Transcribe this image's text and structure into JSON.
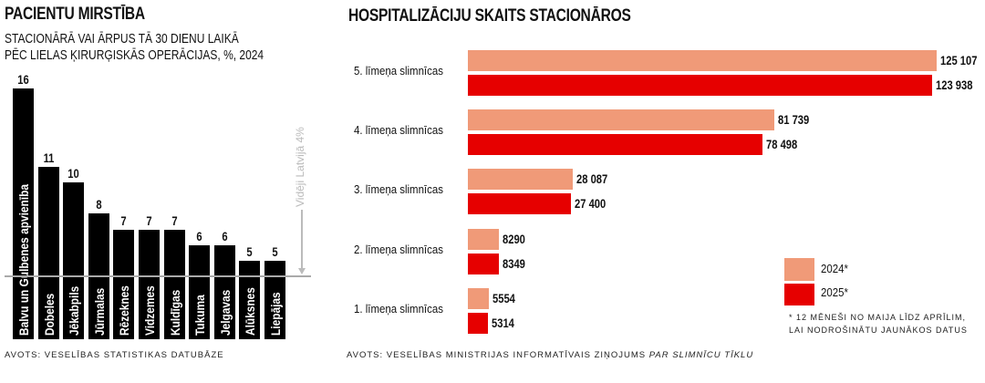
{
  "left": {
    "title": "PACIENTU MIRSTĪBA",
    "subtitle_line1": "STACIONĀRĀ VAI ĀRPUS TĀ 30 DIENU LAIKĀ",
    "subtitle_line2": "PĒC LIELAS ĶIRURĢISKĀS OPERĀCIJAS, %, 2024",
    "source": "AVOTS: VESELĪBAS STATISTIKAS DATUBĀZE"
  },
  "right": {
    "title": "HOSPITALIZĀCIJU SKAITS STACIONĀROS",
    "source_prefix": "AVOTS: VESELĪBAS MINISTRIJAS INFORMATĪVAIS ZIŅOJUMS ",
    "source_italic": "PAR SLIMNĪCU TĪKLU",
    "footnote_line1": "* 12 MĒNEŠI NO MAIJA LĪDZ APRĪLIM,",
    "footnote_line2": "LAI NODROŠINĀTU JAUNĀKOS DATUS"
  },
  "chart_data": [
    {
      "type": "bar",
      "title": "PACIENTU MIRSTĪBA",
      "categories": [
        "Balvu un Gulbenes apvienība",
        "Dobeles",
        "Jēkabpils",
        "Jūrmalas",
        "Rēzeknes",
        "Vidzemes",
        "Kuldīgas",
        "Tukuma",
        "Jelgavas",
        "Alūksnes",
        "Liepājas"
      ],
      "values": [
        16,
        11,
        10,
        8,
        7,
        7,
        7,
        6,
        6,
        5,
        5
      ],
      "value_labels": [
        "16",
        "11",
        "10",
        "8",
        "7",
        "7",
        "7",
        "6",
        "6",
        "5",
        "5"
      ],
      "reference_line": {
        "value": 4,
        "label": "Vidēji Latvijā 4%"
      },
      "color": "#000000"
    },
    {
      "type": "bar",
      "orientation": "horizontal",
      "title": "HOSPITALIZĀCIJU SKAITS STACIONĀROS",
      "categories": [
        "5. līmeņa slimnīcas",
        "4. līmeņa slimnīcas",
        "3. līmeņa slimnīcas",
        "2. līmeņa slimnīcas",
        "1. līmeņa slimnīcas"
      ],
      "series": [
        {
          "name": "2024*",
          "color": "#f09a78",
          "values": [
            125107,
            81739,
            28087,
            8290,
            5554
          ],
          "labels": [
            "125 107",
            "81 739",
            "28 087",
            "8290",
            "5554"
          ]
        },
        {
          "name": "2025*",
          "color": "#e60000",
          "values": [
            123938,
            78498,
            27400,
            8349,
            5314
          ],
          "labels": [
            "123 938",
            "78 498",
            "27 400",
            "8349",
            "5314"
          ]
        }
      ],
      "legend": "bottom-right"
    }
  ]
}
